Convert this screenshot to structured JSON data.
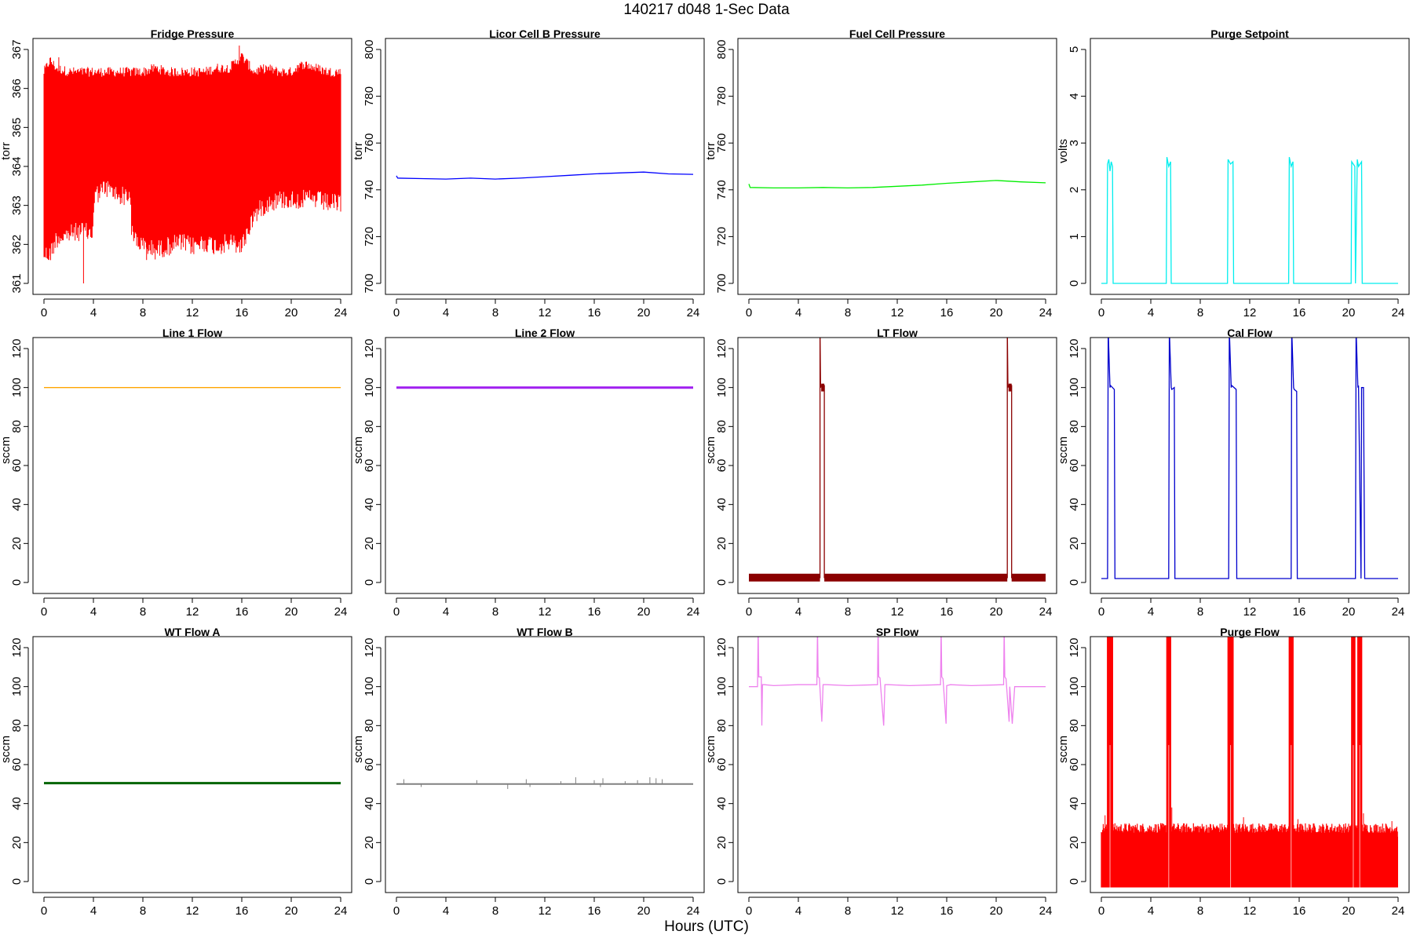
{
  "figure": {
    "title": "140217   d048   1-Sec Data",
    "xlabel": "Hours (UTC)"
  },
  "chart_data": [
    {
      "type": "line",
      "title": "Fridge Pressure",
      "ylabel": "torr",
      "color": "#ff0000",
      "xlim": [
        0,
        24
      ],
      "xticks": [
        0,
        4,
        8,
        12,
        16,
        20,
        24
      ],
      "ylim": [
        361,
        367
      ],
      "yticks": [
        361,
        362,
        363,
        364,
        365,
        366,
        367
      ],
      "style": "band",
      "band": {
        "x": [
          0,
          0.5,
          1,
          2,
          3,
          3.9,
          4.1,
          5,
          6,
          7,
          7.1,
          8,
          9,
          10,
          11,
          12,
          13,
          14,
          15,
          16,
          17,
          18,
          19,
          20,
          21,
          22,
          23,
          24
        ],
        "low": [
          362.0,
          362.0,
          362.4,
          362.5,
          362.6,
          362.5,
          363.5,
          363.7,
          363.5,
          363.5,
          362.5,
          362.2,
          362.1,
          362.2,
          362.3,
          362.2,
          362.3,
          362.2,
          362.3,
          362.2,
          363.0,
          363.3,
          363.4,
          363.4,
          363.4,
          363.4,
          363.3,
          363.3
        ],
        "high": [
          366.3,
          366.6,
          366.4,
          366.3,
          366.3,
          366.3,
          366.3,
          366.3,
          366.3,
          366.3,
          366.3,
          366.3,
          366.4,
          366.3,
          366.3,
          366.3,
          366.3,
          366.4,
          366.4,
          366.7,
          366.3,
          366.4,
          366.3,
          366.3,
          366.5,
          366.4,
          366.3,
          366.3
        ]
      },
      "spikes": [
        [
          0.4,
          361.6
        ],
        [
          1.2,
          366.8
        ],
        [
          3.2,
          361.0
        ],
        [
          8.3,
          361.6
        ],
        [
          15.8,
          367.1
        ],
        [
          20.5,
          366.6
        ],
        [
          23.0,
          363.1
        ]
      ]
    },
    {
      "type": "line",
      "title": "Licor Cell B Pressure",
      "ylabel": "torr",
      "color": "#0000ff",
      "xlim": [
        0,
        24
      ],
      "xticks": [
        0,
        4,
        8,
        12,
        16,
        20,
        24
      ],
      "ylim": [
        700,
        800
      ],
      "yticks": [
        700,
        720,
        740,
        760,
        780,
        800
      ],
      "series": [
        {
          "x": [
            0,
            0.1,
            2,
            4,
            6,
            8,
            10,
            12,
            14,
            16,
            18,
            20,
            22,
            24
          ],
          "y": [
            746.0,
            745.0,
            744.8,
            744.6,
            745.0,
            744.6,
            745.0,
            745.6,
            746.2,
            746.8,
            747.2,
            747.6,
            746.8,
            746.6
          ]
        }
      ]
    },
    {
      "type": "line",
      "title": "Fuel Cell Pressure",
      "ylabel": "torr",
      "color": "#00ee00",
      "xlim": [
        0,
        24
      ],
      "xticks": [
        0,
        4,
        8,
        12,
        16,
        20,
        24
      ],
      "ylim": [
        700,
        800
      ],
      "yticks": [
        700,
        720,
        740,
        760,
        780,
        800
      ],
      "series": [
        {
          "x": [
            0,
            0.1,
            2,
            4,
            6,
            8,
            10,
            12,
            14,
            16,
            18,
            20,
            22,
            24
          ],
          "y": [
            742.5,
            741.0,
            740.8,
            740.8,
            741.0,
            740.8,
            741.0,
            741.5,
            742.0,
            742.8,
            743.4,
            744.0,
            743.4,
            743.0
          ]
        }
      ]
    },
    {
      "type": "line",
      "title": "Purge Setpoint",
      "ylabel": "volts",
      "color": "#00eeee",
      "xlim": [
        0,
        24
      ],
      "xticks": [
        0,
        4,
        8,
        12,
        16,
        20,
        24
      ],
      "ylim": [
        0,
        5
      ],
      "yticks": [
        0,
        1,
        2,
        3,
        4,
        5
      ],
      "series": [
        {
          "x": [
            0,
            0.45,
            0.5,
            0.6,
            0.7,
            0.8,
            0.9,
            0.95,
            5.25,
            5.3,
            5.45,
            5.6,
            5.65,
            10.2,
            10.25,
            10.45,
            10.65,
            10.7,
            15.15,
            15.2,
            15.35,
            15.5,
            15.55,
            20.2,
            20.25,
            20.5,
            20.55,
            20.7,
            20.8,
            21.05,
            21.1,
            24
          ],
          "y": [
            0,
            0,
            2.55,
            2.65,
            2.4,
            2.6,
            2.5,
            0,
            0,
            2.7,
            2.5,
            2.6,
            0,
            0,
            2.65,
            2.55,
            2.6,
            0,
            0,
            2.7,
            2.5,
            2.6,
            0,
            0,
            2.6,
            2.5,
            0,
            2.65,
            2.5,
            2.6,
            0,
            0
          ]
        }
      ]
    },
    {
      "type": "line",
      "title": "Line 1 Flow",
      "ylabel": "sccm",
      "color": "#ffa500",
      "xlim": [
        0,
        24
      ],
      "xticks": [
        0,
        4,
        8,
        12,
        16,
        20,
        24
      ],
      "ylim": [
        0,
        120
      ],
      "yticks": [
        0,
        20,
        40,
        60,
        80,
        100,
        120
      ],
      "series": [
        {
          "x": [
            0,
            24
          ],
          "y": [
            100,
            100
          ]
        }
      ]
    },
    {
      "type": "line",
      "title": "Line 2 Flow",
      "ylabel": "sccm",
      "color": "#a020f0",
      "xlim": [
        0,
        24
      ],
      "xticks": [
        0,
        4,
        8,
        12,
        16,
        20,
        24
      ],
      "ylim": [
        0,
        120
      ],
      "yticks": [
        0,
        20,
        40,
        60,
        80,
        100,
        120
      ],
      "series": [
        {
          "x": [
            0,
            24
          ],
          "y": [
            100,
            100
          ]
        }
      ]
    },
    {
      "type": "line",
      "title": "LT Flow",
      "ylabel": "sccm",
      "color": "#8b0000",
      "xlim": [
        0,
        24
      ],
      "xticks": [
        0,
        4,
        8,
        12,
        16,
        20,
        24
      ],
      "ylim": [
        0,
        120
      ],
      "yticks": [
        0,
        20,
        40,
        60,
        80,
        100,
        120
      ],
      "series": [
        {
          "x": [
            0,
            5.75,
            5.75,
            5.8,
            5.85,
            6.1,
            6.1,
            20.9,
            20.9,
            20.95,
            21.0,
            21.25,
            21.25,
            24
          ],
          "y": [
            2.5,
            2.5,
            130,
            100,
            101,
            101,
            2.5,
            2.5,
            130,
            100,
            101,
            101,
            2.5,
            2.5
          ]
        }
      ],
      "bands": [
        {
          "x0": 0,
          "x1": 5.75,
          "y0": 0.5,
          "y1": 4.5
        },
        {
          "x0": 6.1,
          "x1": 20.9,
          "y0": 0.5,
          "y1": 4.5
        },
        {
          "x0": 21.25,
          "x1": 24,
          "y0": 0.5,
          "y1": 4.5
        },
        {
          "x0": 5.85,
          "x1": 6.1,
          "y0": 98,
          "y1": 102
        },
        {
          "x0": 21.0,
          "x1": 21.25,
          "y0": 98,
          "y1": 102
        }
      ]
    },
    {
      "type": "line",
      "title": "Cal Flow",
      "ylabel": "sccm",
      "color": "#0000cd",
      "xlim": [
        0,
        24
      ],
      "xticks": [
        0,
        4,
        8,
        12,
        16,
        20,
        24
      ],
      "ylim": [
        0,
        120
      ],
      "yticks": [
        0,
        20,
        40,
        60,
        80,
        100,
        120
      ],
      "series": [
        {
          "x": [
            0,
            0.5,
            0.55,
            0.7,
            0.75,
            1.05,
            1.1,
            5.45,
            5.5,
            5.65,
            5.7,
            5.9,
            5.95,
            10.3,
            10.35,
            10.5,
            10.55,
            10.9,
            10.95,
            15.35,
            15.4,
            15.55,
            15.6,
            15.8,
            15.85,
            20.55,
            20.6,
            20.75,
            20.8,
            21.0,
            21.05,
            21.2,
            21.3,
            24
          ],
          "y": [
            2,
            2,
            130,
            100,
            101,
            99,
            2,
            2,
            130,
            100,
            99,
            100,
            2,
            2,
            130,
            100,
            101,
            99,
            2,
            2,
            130,
            100,
            99,
            98,
            2,
            2,
            130,
            100,
            101,
            2,
            100,
            100,
            2,
            2
          ]
        }
      ]
    },
    {
      "type": "line",
      "title": "WT Flow A",
      "ylabel": "sccm",
      "color": "#006400",
      "xlim": [
        0,
        24
      ],
      "xticks": [
        0,
        4,
        8,
        12,
        16,
        20,
        24
      ],
      "ylim": [
        0,
        120
      ],
      "yticks": [
        0,
        20,
        40,
        60,
        80,
        100,
        120
      ],
      "series": [
        {
          "x": [
            0,
            24
          ],
          "y": [
            50.5,
            50.5
          ]
        }
      ]
    },
    {
      "type": "line",
      "title": "WT Flow B",
      "ylabel": "sccm",
      "color": "#808080",
      "xlim": [
        0,
        24
      ],
      "xticks": [
        0,
        4,
        8,
        12,
        16,
        20,
        24
      ],
      "ylim": [
        0,
        120
      ],
      "yticks": [
        0,
        20,
        40,
        60,
        80,
        100,
        120
      ],
      "series": [
        {
          "x": [
            0,
            24
          ],
          "y": [
            50,
            50
          ]
        }
      ],
      "spikes": [
        [
          0.6,
          52.5
        ],
        [
          2.0,
          48.5
        ],
        [
          6.5,
          52
        ],
        [
          9.0,
          47.5
        ],
        [
          10.5,
          52.5
        ],
        [
          10.8,
          48.5
        ],
        [
          13.3,
          51.5
        ],
        [
          14.5,
          53.5
        ],
        [
          16.0,
          52
        ],
        [
          16.5,
          48.5
        ],
        [
          16.7,
          53
        ],
        [
          18.5,
          51.5
        ],
        [
          19.5,
          52
        ],
        [
          20.5,
          53.5
        ],
        [
          21.0,
          53
        ],
        [
          21.5,
          52.5
        ]
      ]
    },
    {
      "type": "line",
      "title": "SP Flow",
      "ylabel": "sccm",
      "color": "#ee82ee",
      "xlim": [
        0,
        24
      ],
      "xticks": [
        0,
        4,
        8,
        12,
        16,
        20,
        24
      ],
      "ylim": [
        0,
        120
      ],
      "yticks": [
        0,
        20,
        40,
        60,
        80,
        100,
        120
      ],
      "series": [
        {
          "x": [
            0,
            0.7,
            0.75,
            0.8,
            1.0,
            1.05,
            1.1,
            1.25,
            2,
            4,
            5.5,
            5.55,
            5.6,
            5.7,
            5.9,
            6.0,
            6.3,
            8,
            10.4,
            10.45,
            10.5,
            10.6,
            10.9,
            11.0,
            11.3,
            13,
            15.5,
            15.55,
            15.6,
            15.7,
            15.95,
            16.0,
            16.3,
            18,
            20.6,
            20.65,
            20.7,
            20.8,
            21.05,
            21.1,
            21.3,
            21.5,
            24
          ],
          "y": [
            100,
            100,
            130,
            105,
            105,
            80,
            101,
            101,
            100.5,
            101,
            101,
            130,
            105,
            104.5,
            82,
            101,
            101,
            100.5,
            101,
            130,
            105,
            104.5,
            80,
            101,
            101,
            100.5,
            101,
            130,
            105,
            104,
            81,
            100.5,
            101,
            100.5,
            101,
            130,
            105,
            104,
            82,
            100,
            81,
            100,
            100
          ]
        }
      ]
    },
    {
      "type": "line",
      "title": "Purge Flow",
      "ylabel": "sccm",
      "color": "#ff0000",
      "xlim": [
        0,
        24
      ],
      "xticks": [
        0,
        4,
        8,
        12,
        16,
        20,
        24
      ],
      "ylim": [
        0,
        120
      ],
      "yticks": [
        0,
        20,
        40,
        60,
        80,
        100,
        120
      ],
      "style": "noise",
      "noise": {
        "low": -3,
        "high": 27
      },
      "bursts": [
        [
          0.45,
          0.95
        ],
        [
          5.25,
          5.65
        ],
        [
          10.2,
          10.7
        ],
        [
          15.15,
          15.55
        ],
        [
          20.2,
          20.55
        ],
        [
          20.7,
          21.1
        ]
      ],
      "spikes": [
        [
          0.3,
          34
        ],
        [
          5.7,
          38
        ],
        [
          11.5,
          33
        ],
        [
          15.9,
          32
        ],
        [
          21.2,
          35
        ],
        [
          23.5,
          31
        ]
      ]
    }
  ]
}
